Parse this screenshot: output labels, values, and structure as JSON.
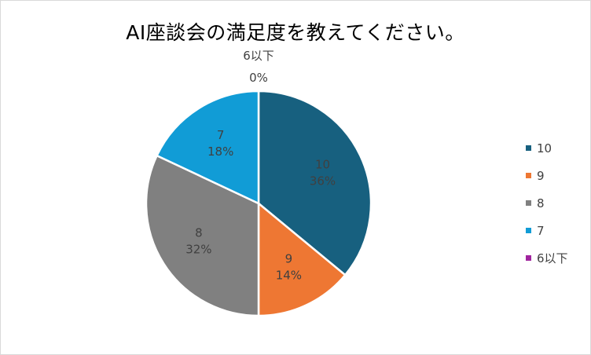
{
  "chart_data": {
    "type": "pie",
    "title": "AI座談会の満足度を教えてください。",
    "categories": [
      "10",
      "9",
      "8",
      "7",
      "6以下"
    ],
    "values": [
      36,
      14,
      32,
      18,
      0
    ],
    "data_labels": [
      {
        "category": "10",
        "percent": "36%"
      },
      {
        "category": "9",
        "percent": "14%"
      },
      {
        "category": "8",
        "percent": "32%"
      },
      {
        "category": "7",
        "percent": "18%"
      },
      {
        "category": "6以下",
        "percent": "0%"
      }
    ],
    "colors": [
      "#17607f",
      "#ee7733",
      "#808080",
      "#119cd6",
      "#a0249e"
    ],
    "legend_position": "right",
    "start_angle": "top, clockwise"
  }
}
